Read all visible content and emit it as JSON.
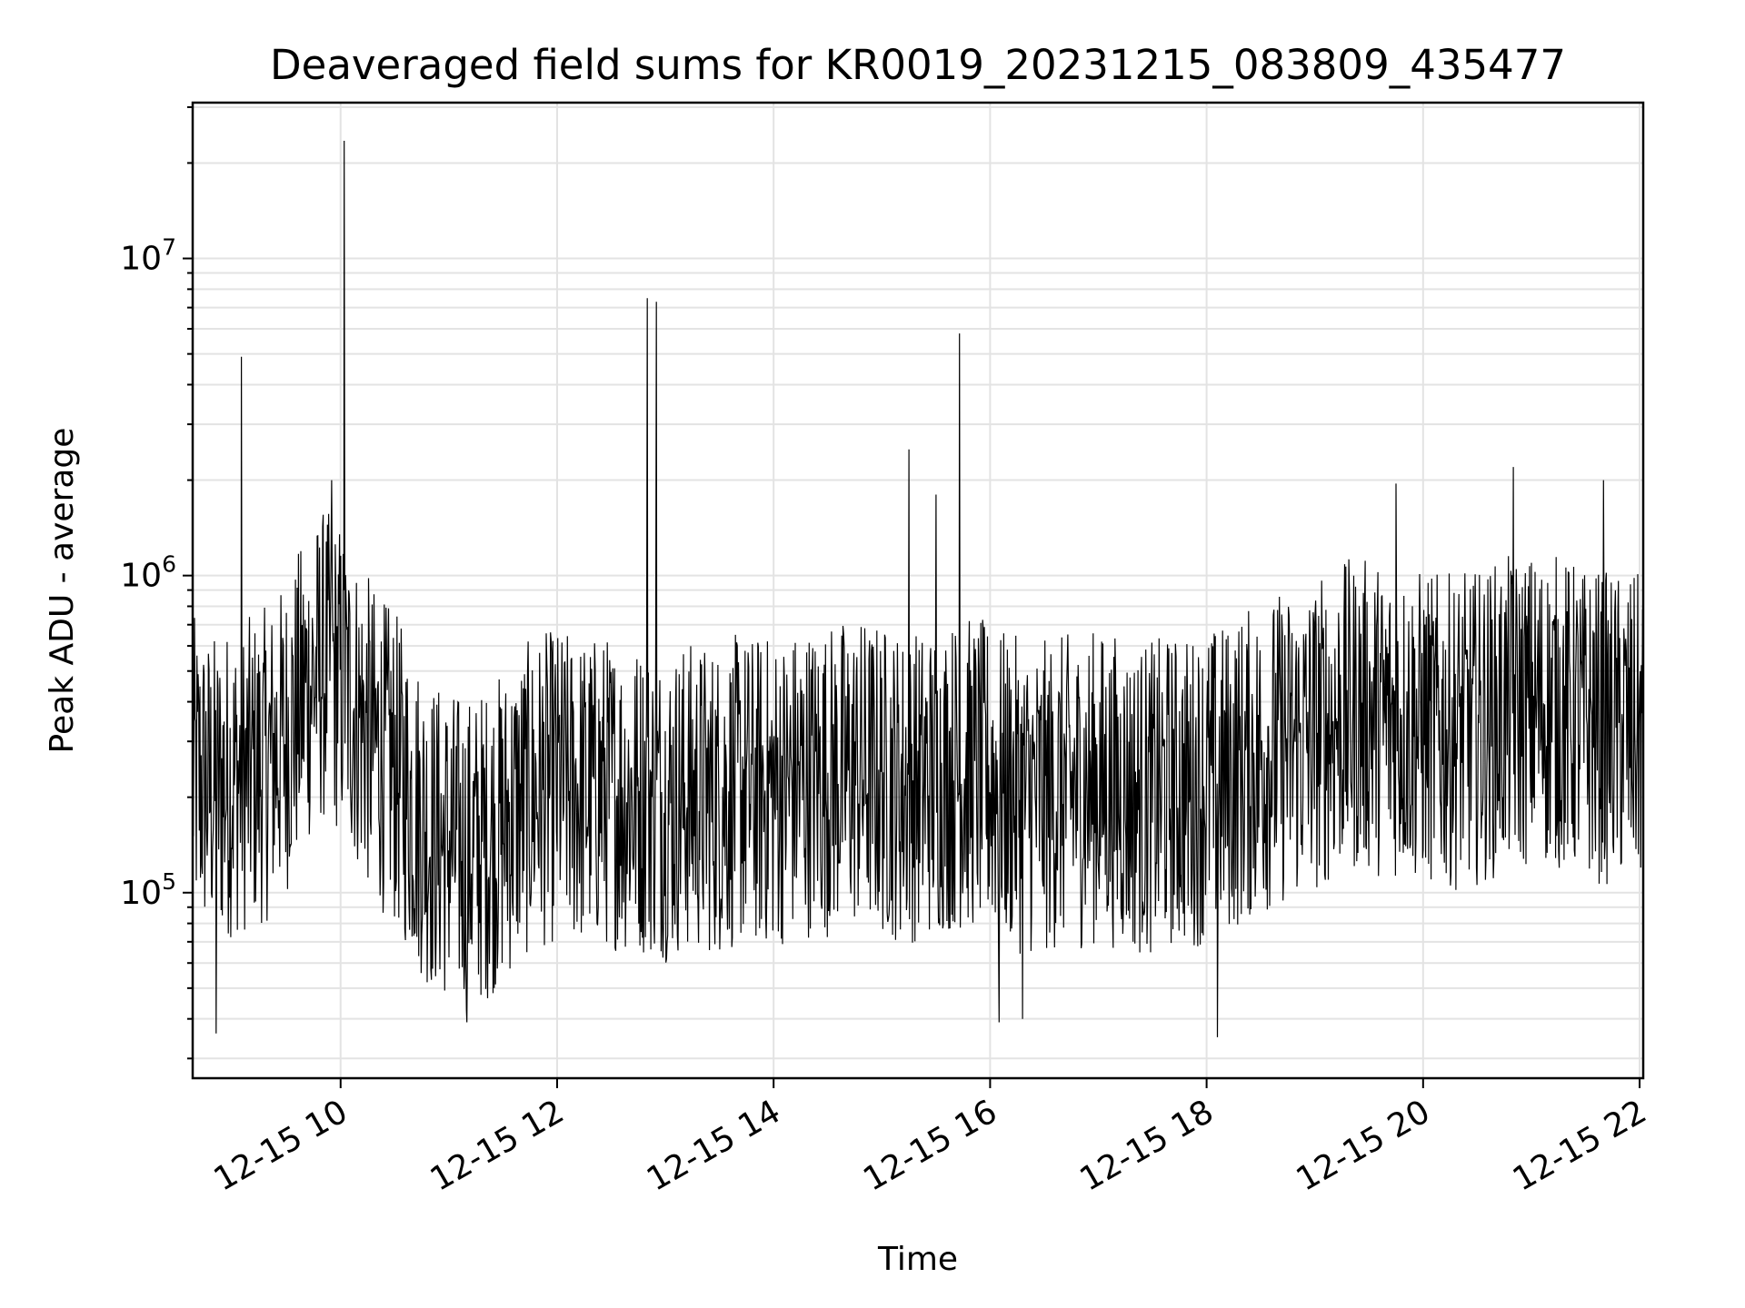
{
  "chart_data": {
    "type": "line",
    "title": "Deaveraged field sums for KR0019_20231215_083809_435477",
    "xlabel": "Time",
    "ylabel": "Peak ADU - average",
    "yscale": "log",
    "ylim": [
      26000,
      31000000
    ],
    "xlim": [
      "2023-12-15 08:38",
      "2023-12-15 22:02"
    ],
    "grid": true,
    "x_tick_labels": [
      "12-15 10",
      "12-15 12",
      "12-15 14",
      "12-15 16",
      "12-15 18",
      "12-15 20",
      "12-15 22"
    ],
    "x_tick_times": [
      "2023-12-15 10:00",
      "2023-12-15 12:00",
      "2023-12-15 14:00",
      "2023-12-15 16:00",
      "2023-12-15 18:00",
      "2023-12-15 20:00",
      "2023-12-15 22:00"
    ],
    "y_tick_labels": [
      {
        "base": "10",
        "exp": "5",
        "value": 100000
      },
      {
        "base": "10",
        "exp": "6",
        "value": 1000000
      },
      {
        "base": "10",
        "exp": "7",
        "value": 10000000
      }
    ],
    "series": [
      {
        "color": "#000000",
        "x": [
          "2023-12-15 08:38",
          "2023-12-15 08:50",
          "2023-12-15 09:00",
          "2023-12-15 09:10",
          "2023-12-15 09:20",
          "2023-12-15 09:30",
          "2023-12-15 09:40",
          "2023-12-15 09:50",
          "2023-12-15 10:00",
          "2023-12-15 10:10",
          "2023-12-15 10:20",
          "2023-12-15 10:30",
          "2023-12-15 10:40",
          "2023-12-15 10:50",
          "2023-12-15 11:00",
          "2023-12-15 11:10",
          "2023-12-15 11:20",
          "2023-12-15 11:30",
          "2023-12-15 11:40",
          "2023-12-15 11:50",
          "2023-12-15 12:00",
          "2023-12-15 12:10",
          "2023-12-15 12:20",
          "2023-12-15 12:30",
          "2023-12-15 12:40",
          "2023-12-15 12:50",
          "2023-12-15 13:00",
          "2023-12-15 13:10",
          "2023-12-15 13:20",
          "2023-12-15 13:30",
          "2023-12-15 13:40",
          "2023-12-15 13:50",
          "2023-12-15 14:00",
          "2023-12-15 14:10",
          "2023-12-15 14:20",
          "2023-12-15 14:30",
          "2023-12-15 14:40",
          "2023-12-15 14:50",
          "2023-12-15 15:00",
          "2023-12-15 15:10",
          "2023-12-15 15:20",
          "2023-12-15 15:30",
          "2023-12-15 15:40",
          "2023-12-15 15:50",
          "2023-12-15 16:00",
          "2023-12-15 16:10",
          "2023-12-15 16:20",
          "2023-12-15 16:30",
          "2023-12-15 16:40",
          "2023-12-15 16:50",
          "2023-12-15 17:00",
          "2023-12-15 17:10",
          "2023-12-15 17:20",
          "2023-12-15 17:30",
          "2023-12-15 17:40",
          "2023-12-15 17:50",
          "2023-12-15 18:00",
          "2023-12-15 18:10",
          "2023-12-15 18:20",
          "2023-12-15 18:30",
          "2023-12-15 18:40",
          "2023-12-15 18:50",
          "2023-12-15 19:00",
          "2023-12-15 19:10",
          "2023-12-15 19:20",
          "2023-12-15 19:30",
          "2023-12-15 19:40",
          "2023-12-15 19:50",
          "2023-12-15 20:00",
          "2023-12-15 20:10",
          "2023-12-15 20:20",
          "2023-12-15 20:30",
          "2023-12-15 20:40",
          "2023-12-15 20:50",
          "2023-12-15 21:00",
          "2023-12-15 21:10",
          "2023-12-15 21:20",
          "2023-12-15 21:30",
          "2023-12-15 21:40",
          "2023-12-15 21:50",
          "2023-12-15 22:02"
        ],
        "y": [
          250000,
          220000,
          240000,
          250000,
          270000,
          330000,
          450000,
          550000,
          500000,
          380000,
          300000,
          260000,
          200000,
          160000,
          150000,
          140000,
          150000,
          170000,
          200000,
          220000,
          230000,
          220000,
          220000,
          220000,
          210000,
          210000,
          200000,
          210000,
          210000,
          210000,
          220000,
          220000,
          220000,
          230000,
          240000,
          240000,
          250000,
          250000,
          240000,
          230000,
          230000,
          240000,
          250000,
          250000,
          240000,
          220000,
          210000,
          210000,
          220000,
          220000,
          230000,
          220000,
          210000,
          210000,
          220000,
          220000,
          230000,
          240000,
          260000,
          280000,
          300000,
          310000,
          330000,
          360000,
          380000,
          380000,
          370000,
          360000,
          350000,
          340000,
          340000,
          350000,
          370000,
          390000,
          400000,
          400000,
          380000,
          360000,
          350000,
          340000,
          340000
        ],
        "noise_range_factor": [
          0.3,
          3.0
        ],
        "spikes": [
          {
            "x": "2023-12-15 09:05",
            "y": 4900000
          },
          {
            "x": "2023-12-15 10:02",
            "y": 23500000
          },
          {
            "x": "2023-12-15 12:50",
            "y": 7500000
          },
          {
            "x": "2023-12-15 12:55",
            "y": 7300000
          },
          {
            "x": "2023-12-15 15:15",
            "y": 2500000
          },
          {
            "x": "2023-12-15 15:43",
            "y": 5800000
          },
          {
            "x": "2023-12-15 15:30",
            "y": 1800000
          },
          {
            "x": "2023-12-15 09:55",
            "y": 2000000
          },
          {
            "x": "2023-12-15 20:50",
            "y": 2200000
          },
          {
            "x": "2023-12-15 21:40",
            "y": 2000000
          },
          {
            "x": "2023-12-15 19:45",
            "y": 1950000
          }
        ],
        "dips": [
          {
            "x": "2023-12-15 08:51",
            "y": 36000
          },
          {
            "x": "2023-12-15 11:10",
            "y": 39000
          },
          {
            "x": "2023-12-15 16:05",
            "y": 39000
          },
          {
            "x": "2023-12-15 18:06",
            "y": 35000
          },
          {
            "x": "2023-12-15 16:18",
            "y": 40000
          }
        ]
      }
    ]
  }
}
